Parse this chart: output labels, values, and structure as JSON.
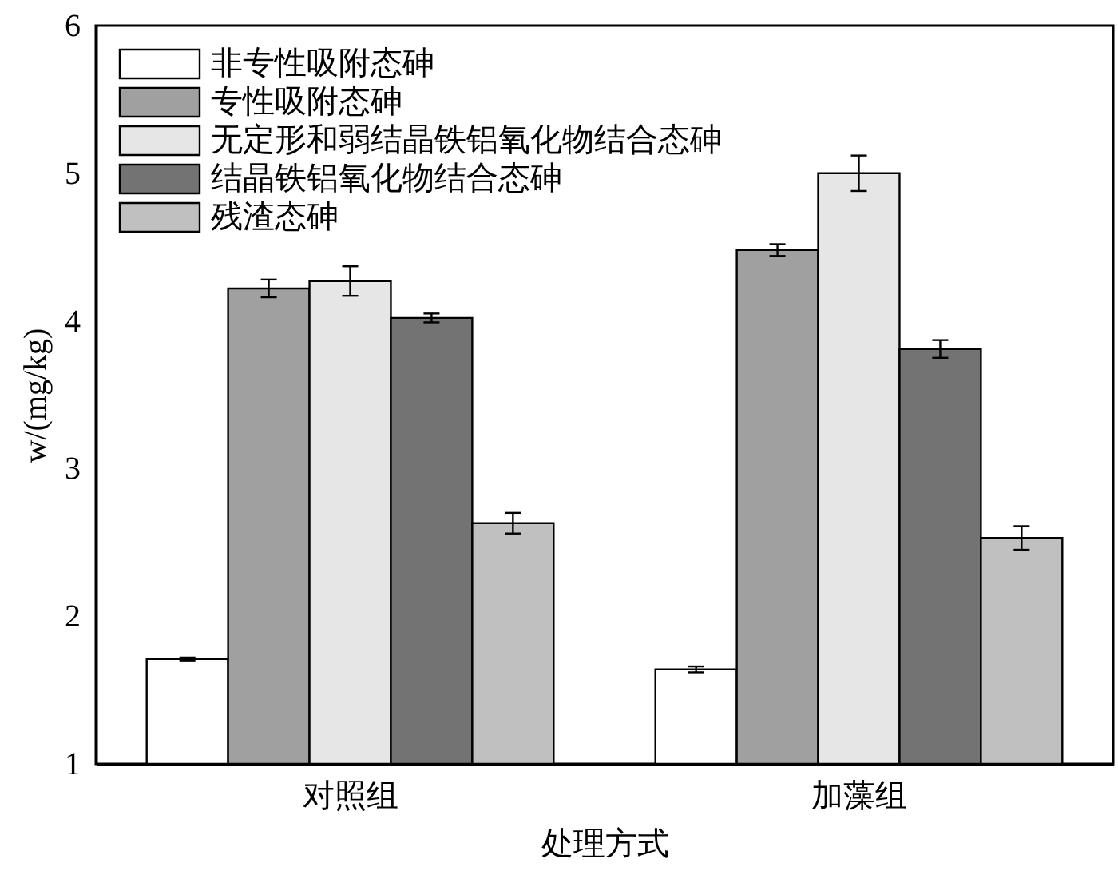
{
  "chart_data": {
    "type": "bar",
    "categories": [
      "对照组",
      "加藻组"
    ],
    "xlabel": "处理方式",
    "ylabel": "w/(mg/kg)",
    "ylim": [
      1,
      6
    ],
    "yticks": [
      1,
      2,
      3,
      4,
      5,
      6
    ],
    "legend": "top left",
    "series": [
      {
        "name": "非专性吸附态砷",
        "color": "#ffffff",
        "values": [
          1.71,
          1.64
        ],
        "errors": [
          0.01,
          0.02
        ]
      },
      {
        "name": "专性吸附态砷",
        "color": "#a0a0a0",
        "values": [
          4.22,
          4.48
        ],
        "errors": [
          0.06,
          0.04
        ]
      },
      {
        "name": "无定形和弱结晶铁铝氧化物结合态砷",
        "color": "#e6e6e6",
        "values": [
          4.27,
          5.0
        ],
        "errors": [
          0.1,
          0.12
        ]
      },
      {
        "name": "结晶铁铝氧化物结合态砷",
        "color": "#737373",
        "values": [
          4.02,
          3.81
        ],
        "errors": [
          0.03,
          0.06
        ]
      },
      {
        "name": "残渣态砷",
        "color": "#c0c0c0",
        "values": [
          2.63,
          2.53
        ],
        "errors": [
          0.07,
          0.08
        ]
      }
    ]
  }
}
